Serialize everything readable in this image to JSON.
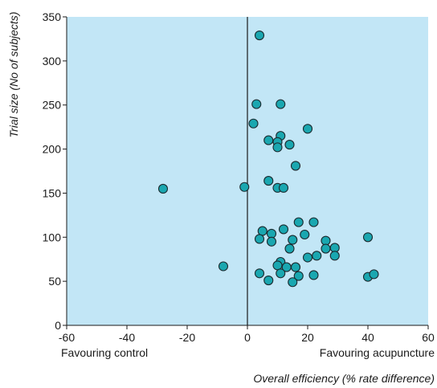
{
  "chart_data": {
    "type": "scatter",
    "title": "",
    "xlabel": "Overall efficiency (% rate difference)",
    "ylabel": "Trial size (No of subjects)",
    "xlim": [
      -60,
      60
    ],
    "ylim": [
      0,
      350
    ],
    "xticks": [
      -60,
      -40,
      -20,
      0,
      20,
      40,
      60
    ],
    "yticks": [
      0,
      50,
      100,
      150,
      200,
      250,
      300,
      350
    ],
    "left_annotation": "Favouring control",
    "right_annotation": "Favouring acupuncture",
    "reference_line_x": 0,
    "grid": false,
    "colors": {
      "plot_background": "#c2e6f6",
      "marker_fill": "#1aa7b0",
      "marker_stroke": "#1b2a2f",
      "axis": "#1a1a1a"
    },
    "points": [
      {
        "x": 4,
        "y": 329
      },
      {
        "x": 3,
        "y": 251
      },
      {
        "x": 11,
        "y": 251
      },
      {
        "x": 2,
        "y": 229
      },
      {
        "x": 20,
        "y": 223
      },
      {
        "x": 11,
        "y": 215
      },
      {
        "x": 7,
        "y": 210
      },
      {
        "x": 10,
        "y": 208
      },
      {
        "x": 14,
        "y": 205
      },
      {
        "x": 10,
        "y": 202
      },
      {
        "x": 16,
        "y": 181
      },
      {
        "x": 7,
        "y": 164
      },
      {
        "x": -28,
        "y": 155
      },
      {
        "x": -1,
        "y": 157
      },
      {
        "x": 10,
        "y": 156
      },
      {
        "x": 12,
        "y": 156
      },
      {
        "x": 17,
        "y": 117
      },
      {
        "x": 22,
        "y": 117
      },
      {
        "x": 5,
        "y": 107
      },
      {
        "x": 8,
        "y": 104
      },
      {
        "x": 12,
        "y": 109
      },
      {
        "x": 19,
        "y": 103
      },
      {
        "x": 4,
        "y": 98
      },
      {
        "x": 8,
        "y": 95
      },
      {
        "x": 15,
        "y": 97
      },
      {
        "x": 26,
        "y": 96
      },
      {
        "x": 14,
        "y": 87
      },
      {
        "x": 26,
        "y": 87
      },
      {
        "x": 29,
        "y": 88
      },
      {
        "x": 40,
        "y": 100
      },
      {
        "x": 20,
        "y": 77
      },
      {
        "x": 23,
        "y": 79
      },
      {
        "x": 29,
        "y": 79
      },
      {
        "x": 11,
        "y": 72
      },
      {
        "x": 10,
        "y": 68
      },
      {
        "x": 13,
        "y": 66
      },
      {
        "x": 16,
        "y": 66
      },
      {
        "x": -8,
        "y": 67
      },
      {
        "x": 4,
        "y": 59
      },
      {
        "x": 11,
        "y": 59
      },
      {
        "x": 17,
        "y": 56
      },
      {
        "x": 22,
        "y": 57
      },
      {
        "x": 7,
        "y": 51
      },
      {
        "x": 15,
        "y": 49
      },
      {
        "x": 40,
        "y": 55
      },
      {
        "x": 42,
        "y": 58
      }
    ]
  }
}
